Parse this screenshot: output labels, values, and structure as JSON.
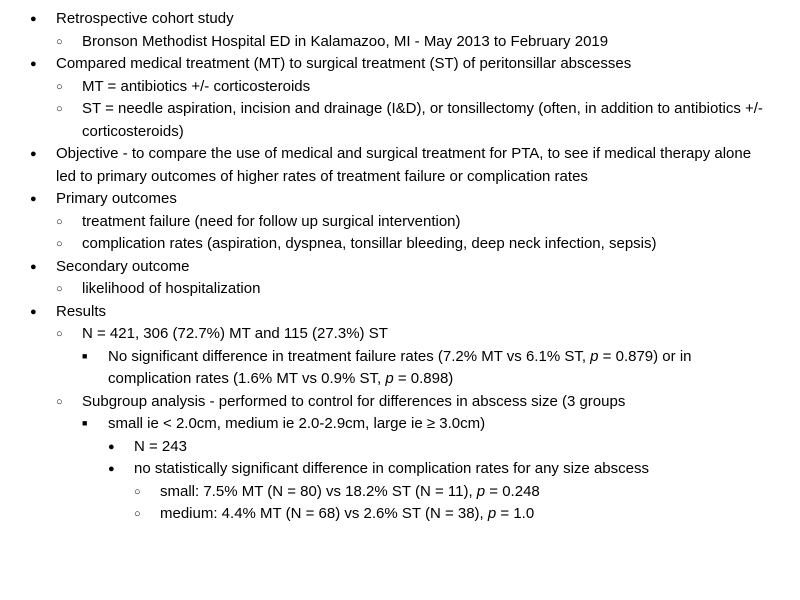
{
  "b1": "Retrospective cohort study",
  "b1_1": "Bronson Methodist Hospital ED in Kalamazoo, MI - May 2013 to February 2019",
  "b2": "Compared medical treatment (MT) to surgical treatment (ST) of peritonsillar abscesses",
  "b2_1": "MT = antibiotics +/- corticosteroids",
  "b2_2": "ST = needle aspiration, incision and drainage (I&D), or tonsillectomy (often, in addition to antibiotics +/- corticosteroids)",
  "b3": "Objective - to compare the use of medical and surgical treatment for PTA, to see if medical therapy alone led to primary outcomes of higher rates of treatment failure or complication rates",
  "b4": "Primary outcomes",
  "b4_1": "treatment failure (need for follow up surgical intervention)",
  "b4_2": "complication rates (aspiration, dyspnea, tonsillar bleeding, deep neck infection, sepsis)",
  "b5": "Secondary outcome",
  "b5_1": "likelihood of hospitalization",
  "b6": "Results",
  "b6_1_a": "N = 421, 306 (72.7%) MT and 115 (27.3%) ST",
  "b6_1_1_a": "No significant difference in treatment failure rates (7.2% MT vs 6.1% ST, ",
  "b6_1_1_p": "p",
  "b6_1_1_b": " = 0.879) or in complication rates (1.6% MT vs 0.9% ST, ",
  "b6_1_1_p2": "p",
  "b6_1_1_c": " = 0.898)",
  "b6_2": "Subgroup analysis - performed to control for differences in abscess size (3 groups",
  "b6_2_1": "small ie < 2.0cm, medium ie 2.0-2.9cm, large ie ≥ 3.0cm)",
  "b6_2_1_1": "N = 243",
  "b6_2_1_2": "no statistically significant difference in complication rates for any size abscess",
  "b6_2_1_2_1_a": "small: 7.5% MT (N = 80) vs 18.2% ST (N = 11), ",
  "b6_2_1_2_1_p": "p",
  "b6_2_1_2_1_b": " = 0.248",
  "b6_2_1_2_2_a": "medium: 4.4% MT (N = 68) vs 2.6% ST (N = 38), ",
  "b6_2_1_2_2_p": "p",
  "b6_2_1_2_2_b": " = 1.0"
}
